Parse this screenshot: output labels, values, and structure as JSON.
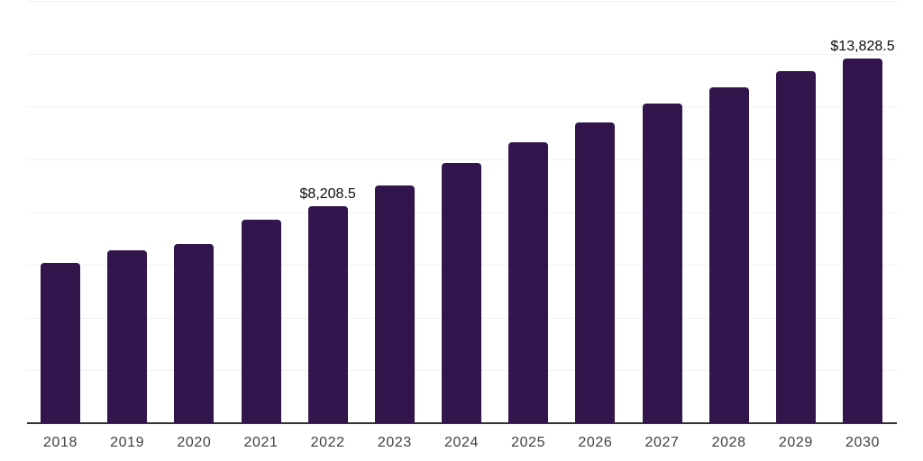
{
  "chart_data": {
    "type": "bar",
    "title": "",
    "xlabel": "",
    "ylabel": "",
    "categories": [
      "2018",
      "2019",
      "2020",
      "2021",
      "2022",
      "2023",
      "2024",
      "2025",
      "2026",
      "2027",
      "2028",
      "2029",
      "2030"
    ],
    "values": [
      6085,
      6540,
      6780,
      7715,
      8208.5,
      9005,
      9865,
      10630,
      11380,
      12115,
      12740,
      13350,
      13828.5
    ],
    "ylim": [
      0,
      16000
    ],
    "gridline_step": 2000,
    "grid": "horizontal-only",
    "legend": "none",
    "annotations": [
      {
        "category": "2022",
        "text": "$8,208.5"
      },
      {
        "category": "2030",
        "text": "$13,828.5"
      }
    ],
    "colors": {
      "bar": "#33154D",
      "gridline": "#f1f1f1",
      "axis_line": "#333333",
      "x_label_text": "#404040",
      "data_label_text": "#0d0d0d",
      "background": "#ffffff"
    }
  }
}
